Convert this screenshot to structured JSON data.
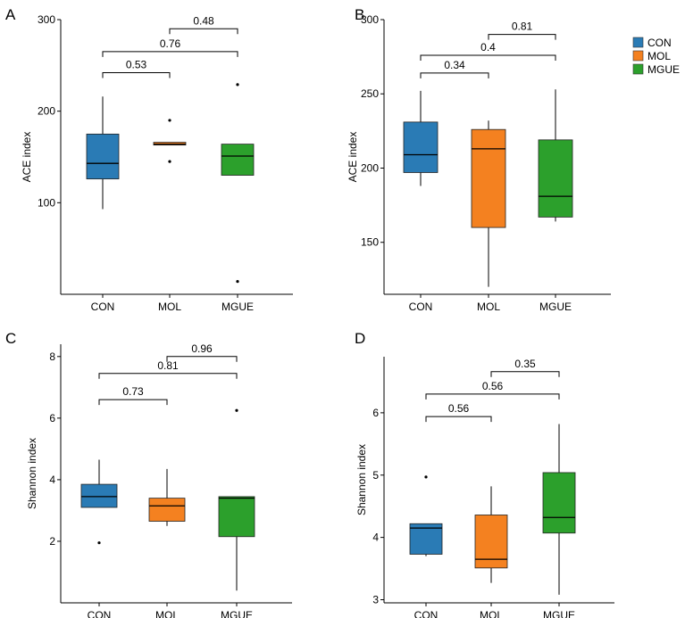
{
  "colors": {
    "CON": "#2a7bb5",
    "MOL": "#f48120",
    "MGUE": "#2ca02c"
  },
  "legend": [
    {
      "name": "CON",
      "color": "#2a7bb5"
    },
    {
      "name": "MOL",
      "color": "#f48120"
    },
    {
      "name": "MGUE",
      "color": "#2ca02c"
    }
  ],
  "chart_data": [
    {
      "panel": "A",
      "type": "box",
      "ylabel": "ACE index",
      "ylim": [
        0,
        300
      ],
      "yticks": [
        100,
        200,
        300
      ],
      "categories": [
        "CON",
        "MOL",
        "MGUE"
      ],
      "boxes": [
        {
          "group": "CON",
          "whislo": 93,
          "q1": 126,
          "med": 143,
          "q3": 175,
          "whishi": 216,
          "fliers": []
        },
        {
          "group": "MOL",
          "whislo": 163,
          "q1": 163,
          "med": 164,
          "q3": 166,
          "whishi": 166,
          "fliers": [
            190,
            145
          ]
        },
        {
          "group": "MGUE",
          "whislo": 130,
          "q1": 130,
          "med": 151,
          "q3": 164,
          "whishi": 164,
          "fliers": [
            229,
            14
          ]
        }
      ],
      "comparisons": [
        {
          "from": "CON",
          "to": "MOL",
          "p": "0.53",
          "y": 242
        },
        {
          "from": "CON",
          "to": "MGUE",
          "p": "0.76",
          "y": 265
        },
        {
          "from": "MOL",
          "to": "MGUE",
          "p": "0.48",
          "y": 290
        }
      ]
    },
    {
      "panel": "B",
      "type": "box",
      "ylabel": "ACE index",
      "ylim": [
        115,
        300
      ],
      "yticks": [
        150,
        200,
        250,
        300
      ],
      "categories": [
        "CON",
        "MOL",
        "MGUE"
      ],
      "boxes": [
        {
          "group": "CON",
          "whislo": 188,
          "q1": 197,
          "med": 209,
          "q3": 231,
          "whishi": 252,
          "fliers": []
        },
        {
          "group": "MOL",
          "whislo": 120,
          "q1": 160,
          "med": 213,
          "q3": 226,
          "whishi": 232,
          "fliers": []
        },
        {
          "group": "MGUE",
          "whislo": 164,
          "q1": 167,
          "med": 181,
          "q3": 219,
          "whishi": 253,
          "fliers": []
        }
      ],
      "comparisons": [
        {
          "from": "CON",
          "to": "MOL",
          "p": "0.34",
          "y": 264
        },
        {
          "from": "CON",
          "to": "MGUE",
          "p": "0.4",
          "y": 276
        },
        {
          "from": "MOL",
          "to": "MGUE",
          "p": "0.81",
          "y": 290
        }
      ]
    },
    {
      "panel": "C",
      "type": "box",
      "ylabel": "Shannon index",
      "ylim": [
        0,
        8.4
      ],
      "yticks": [
        2,
        4,
        6,
        8
      ],
      "categories": [
        "CON",
        "MOL",
        "MGUE"
      ],
      "boxes": [
        {
          "group": "CON",
          "whislo": 3.1,
          "q1": 3.1,
          "med": 3.45,
          "q3": 3.85,
          "whishi": 4.65,
          "fliers": [
            1.95
          ]
        },
        {
          "group": "MOL",
          "whislo": 2.5,
          "q1": 2.65,
          "med": 3.15,
          "q3": 3.4,
          "whishi": 4.35,
          "fliers": []
        },
        {
          "group": "MGUE",
          "whislo": 0.4,
          "q1": 2.15,
          "med": 3.4,
          "q3": 3.45,
          "whishi": 3.45,
          "fliers": [
            6.25
          ]
        }
      ],
      "comparisons": [
        {
          "from": "CON",
          "to": "MOL",
          "p": "0.73",
          "y": 6.6
        },
        {
          "from": "CON",
          "to": "MGUE",
          "p": "0.81",
          "y": 7.45
        },
        {
          "from": "MOL",
          "to": "MGUE",
          "p": "0.96",
          "y": 8.0
        }
      ]
    },
    {
      "panel": "D",
      "type": "box",
      "ylabel": "Shannon index",
      "ylim": [
        2.95,
        6.9
      ],
      "yticks": [
        3,
        4,
        5,
        6
      ],
      "categories": [
        "CON",
        "MOL",
        "MGUE"
      ],
      "boxes": [
        {
          "group": "CON",
          "whislo": 3.7,
          "q1": 3.73,
          "med": 4.15,
          "q3": 4.22,
          "whishi": 4.22,
          "fliers": [
            4.97
          ]
        },
        {
          "group": "MOL",
          "whislo": 3.27,
          "q1": 3.51,
          "med": 3.65,
          "q3": 4.36,
          "whishi": 4.82,
          "fliers": []
        },
        {
          "group": "MGUE",
          "whislo": 3.08,
          "q1": 4.07,
          "med": 4.32,
          "q3": 5.04,
          "whishi": 5.82,
          "fliers": []
        }
      ],
      "comparisons": [
        {
          "from": "CON",
          "to": "MOL",
          "p": "0.56",
          "y": 5.94
        },
        {
          "from": "CON",
          "to": "MGUE",
          "p": "0.56",
          "y": 6.3
        },
        {
          "from": "MOL",
          "to": "MGUE",
          "p": "0.35",
          "y": 6.66
        }
      ]
    }
  ]
}
